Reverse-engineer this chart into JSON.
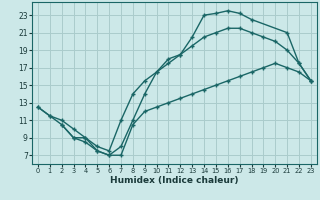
{
  "xlabel": "Humidex (Indice chaleur)",
  "bg_color": "#cce8e8",
  "grid_color": "#aacccc",
  "line_color": "#1a6666",
  "xlim": [
    -0.5,
    23.5
  ],
  "ylim": [
    6.0,
    24.5
  ],
  "xticks": [
    0,
    1,
    2,
    3,
    4,
    5,
    6,
    7,
    8,
    9,
    10,
    11,
    12,
    13,
    14,
    15,
    16,
    17,
    18,
    19,
    20,
    21,
    22,
    23
  ],
  "yticks": [
    7,
    9,
    11,
    13,
    15,
    17,
    19,
    21,
    23
  ],
  "line1_x": [
    0,
    1,
    2,
    3,
    4,
    5,
    6,
    7,
    8,
    9,
    10,
    11,
    12,
    13,
    14,
    15,
    16,
    17,
    18,
    21,
    22,
    23
  ],
  "line1_y": [
    12.5,
    11.5,
    10.5,
    9.0,
    8.5,
    7.5,
    7.0,
    8.0,
    11.0,
    14.0,
    16.5,
    18.0,
    18.5,
    20.5,
    23.0,
    23.2,
    23.5,
    23.2,
    22.5,
    21.0,
    17.5,
    15.5
  ],
  "line2_x": [
    0,
    1,
    2,
    3,
    4,
    5,
    6,
    7,
    8,
    9,
    10,
    11,
    12,
    13,
    14,
    15,
    16,
    17,
    18,
    19,
    20,
    21,
    22,
    23
  ],
  "line2_y": [
    12.5,
    11.5,
    11.0,
    10.0,
    9.0,
    8.0,
    7.5,
    11.0,
    14.0,
    15.5,
    16.5,
    17.5,
    18.5,
    19.5,
    20.5,
    21.0,
    21.5,
    21.5,
    21.0,
    20.5,
    20.0,
    19.0,
    17.5,
    15.5
  ],
  "line3_x": [
    2,
    3,
    4,
    5,
    6,
    7,
    8,
    9,
    10,
    11,
    12,
    13,
    14,
    15,
    16,
    17,
    18,
    19,
    20,
    21,
    22,
    23
  ],
  "line3_y": [
    10.5,
    9.0,
    9.0,
    7.5,
    7.0,
    7.0,
    10.5,
    12.0,
    12.5,
    13.0,
    13.5,
    14.0,
    14.5,
    15.0,
    15.5,
    16.0,
    16.5,
    17.0,
    17.5,
    17.0,
    16.5,
    15.5
  ]
}
